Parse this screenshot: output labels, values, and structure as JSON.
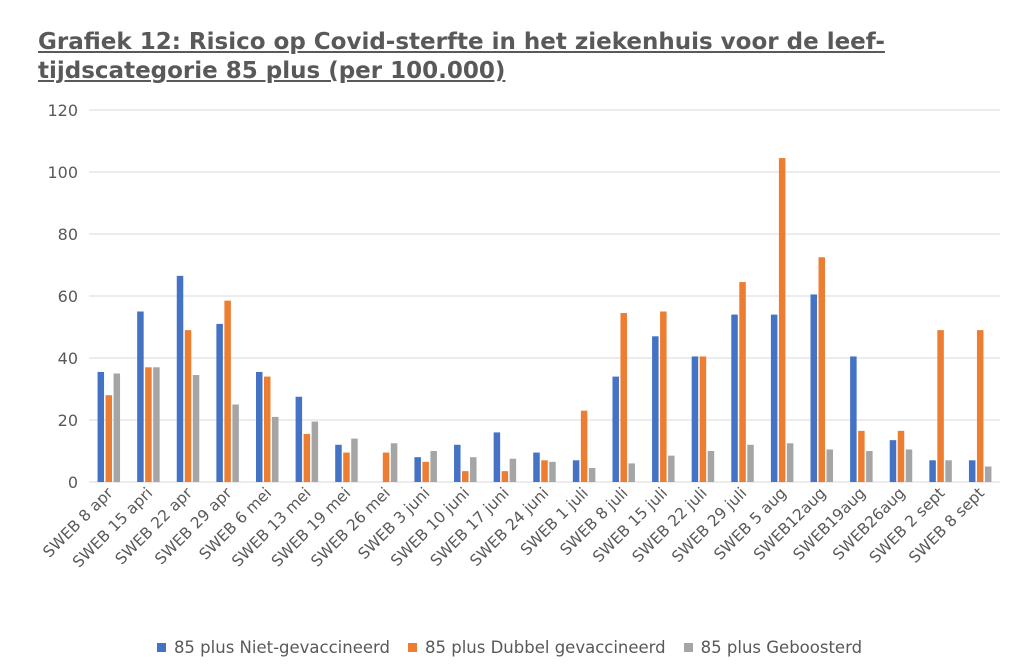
{
  "chart_data": {
    "type": "bar",
    "title": "Grafiek 12: Risico op Covid-sterfte in het ziekenhuis voor de leef-tijdscategorie 85 plus (per 100.000)",
    "title_lines": [
      "Grafiek 12: Risico op Covid-sterfte in het ziekenhuis voor de leef-",
      "tijdscategorie 85 plus (per 100.000)"
    ],
    "categories": [
      "SWEB 8 apr",
      "SWEB 15 apri",
      "SWEB 22 apr",
      "SWEB 29 apr",
      "SWEB 6 mei",
      "SWEB 13 mei",
      "SWEB 19 mei",
      "SWEB 26 mei",
      "SWEB 3 juni",
      "SWEB 10 juni",
      "SWEB 17 juni",
      "SWEB 24 juni",
      "SWEB 1 juli",
      "SWEB 8 juli",
      "SWEB 15 juli",
      "SWEB 22 juli",
      "SWEB 29 juli",
      "SWEB 5 aug",
      "SWEB12aug",
      "SWEB19aug",
      "SWEB26aug",
      "SWEB 2 sept",
      "SWEB 8 sept"
    ],
    "series": [
      {
        "name": "85 plus Niet-gevaccineerd",
        "color": "#4472C4",
        "values": [
          35.5,
          55,
          66.5,
          51,
          35.5,
          27.5,
          12,
          0,
          8,
          12,
          16,
          9.5,
          7,
          34,
          47,
          40.5,
          54,
          54,
          60.5,
          40.5,
          13.5,
          7,
          7
        ]
      },
      {
        "name": "85 plus Dubbel gevaccineerd",
        "color": "#ED7D31",
        "values": [
          28,
          37,
          49,
          58.5,
          34,
          15.5,
          9.5,
          9.5,
          6.5,
          3.5,
          3.5,
          7,
          23,
          54.5,
          55,
          40.5,
          64.5,
          104.5,
          72.5,
          16.5,
          16.5,
          49,
          49
        ]
      },
      {
        "name": "85 plus Geboosterd",
        "color": "#A5A5A5",
        "values": [
          35,
          37,
          34.5,
          25,
          21,
          19.5,
          14,
          12.5,
          10,
          8,
          7.5,
          6.5,
          4.5,
          6,
          8.5,
          10,
          12,
          12.5,
          10.5,
          10,
          10.5,
          7,
          5
        ]
      }
    ],
    "ylim": [
      0,
      120
    ],
    "yticks": [
      "0",
      "20",
      "40",
      "60",
      "80",
      "100",
      "120"
    ],
    "grid": true,
    "legend_position": "bottom"
  }
}
